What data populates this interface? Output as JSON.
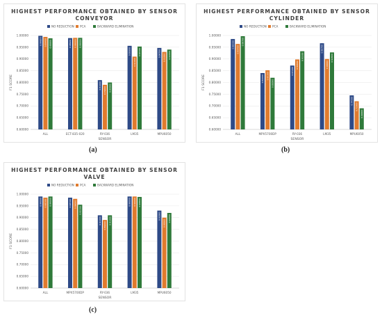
{
  "colors": {
    "no_reduction": "#2e4a87",
    "pca": "#e07b2e",
    "backward": "#2f7a3a",
    "grid": "#e6e6e6",
    "axis": "#bfbfbf"
  },
  "captions": {
    "a": "(a)",
    "b": "(b)",
    "c": "(c)"
  },
  "chart_data": [
    {
      "type": "bar",
      "title_line1": "HIGHEST PERFORMANCE OBTAINED BY SENSOR",
      "title_line2": "CONVEYOR",
      "xlabel": "SENSOR",
      "ylabel": "F1 SCORE",
      "ylim": [
        0.6,
        1.0
      ],
      "yticks": [
        "1.00000",
        "0.95000",
        "0.90000",
        "0.85000",
        "0.80000",
        "0.75000",
        "0.70000",
        "0.65000",
        "0.60000"
      ],
      "legend_position": "top-center",
      "categories": [
        "ALL",
        "ECT-835-020",
        "RY-036",
        "LM35",
        "MPU6050"
      ],
      "series": [
        {
          "name": "NO REDUCTION",
          "values": [
            0.9985,
            0.989,
            0.81,
            0.956,
            0.947
          ],
          "labels": [
            "0.99850",
            "0.98900",
            "0.81000",
            "0.95600",
            "0.94700"
          ]
        },
        {
          "name": "PCA",
          "values": [
            0.994,
            0.99,
            0.79,
            0.91,
            0.93
          ],
          "labels": [
            "0.99400",
            "0.99000",
            "0.79000",
            "0.91000",
            "0.93000"
          ]
        },
        {
          "name": "BACKWARD ELIMINATION",
          "values": [
            0.988,
            0.99,
            0.8,
            0.953,
            0.94
          ],
          "labels": [
            "0.98800",
            "0.99000",
            "0.80000",
            "0.95300",
            "0.94000"
          ]
        }
      ]
    },
    {
      "type": "bar",
      "title_line1": "HIGHEST PERFORMANCE OBTAINED BY SENSOR",
      "title_line2": "CYLINDER",
      "xlabel": "SENSOR",
      "ylabel": "F1 SCORE",
      "ylim": [
        0.6,
        1.0
      ],
      "yticks": [
        "1.00000",
        "0.95000",
        "0.90000",
        "0.85000",
        "0.80000",
        "0.75000",
        "0.70000",
        "0.65000",
        "0.60000"
      ],
      "legend_position": "top-center",
      "categories": [
        "ALL",
        "MPX5700DP",
        "RY-036",
        "LM35",
        "MPU6050"
      ],
      "series": [
        {
          "name": "NO REDUCTION",
          "values": [
            0.985,
            0.84,
            0.872,
            0.967,
            0.745
          ],
          "labels": [
            "0.98500",
            "0.84000",
            "0.87200",
            "0.96700",
            "0.74500"
          ]
        },
        {
          "name": "PCA",
          "values": [
            0.964,
            0.852,
            0.898,
            0.9,
            0.72
          ],
          "labels": [
            "0.96400",
            "0.85200",
            "0.89800",
            "0.90000",
            "0.72000"
          ]
        },
        {
          "name": "BACKWARD ELIMINATION",
          "values": [
            0.997,
            0.82,
            0.933,
            0.928,
            0.69
          ],
          "labels": [
            "0.99700",
            "0.82000",
            "0.93300",
            "0.92800",
            "0.69000"
          ]
        }
      ]
    },
    {
      "type": "bar",
      "title_line1": "HIGHEST PERFORMANCE OBTAINED BY SENSOR",
      "title_line2": "VALVE",
      "xlabel": "SENSOR",
      "ylabel": "F1 SCORE",
      "ylim": [
        0.6,
        1.0
      ],
      "yticks": [
        "1.00000",
        "0.95000",
        "0.90000",
        "0.85000",
        "0.80000",
        "0.75000",
        "0.70000",
        "0.65000",
        "0.60000"
      ],
      "legend_position": "top-center",
      "categories": [
        "ALL",
        "MPX5700DP",
        "RY-036",
        "LM35",
        "MPU6050"
      ],
      "series": [
        {
          "name": "NO REDUCTION",
          "values": [
            0.99,
            0.985,
            0.91,
            0.99,
            0.93
          ],
          "labels": [
            "0.99000",
            "0.98500",
            "0.91000",
            "0.99000",
            "0.93000"
          ]
        },
        {
          "name": "PCA",
          "values": [
            0.985,
            0.98,
            0.89,
            0.99,
            0.9
          ],
          "labels": [
            "0.98500",
            "0.98000",
            "0.89000",
            "0.99000",
            "0.90000"
          ]
        },
        {
          "name": "BACKWARD ELIMINATION",
          "values": [
            0.99,
            0.955,
            0.91,
            0.988,
            0.92
          ],
          "labels": [
            "0.99000",
            "0.95500",
            "0.91000",
            "0.98800",
            "0.92000"
          ]
        }
      ]
    }
  ]
}
